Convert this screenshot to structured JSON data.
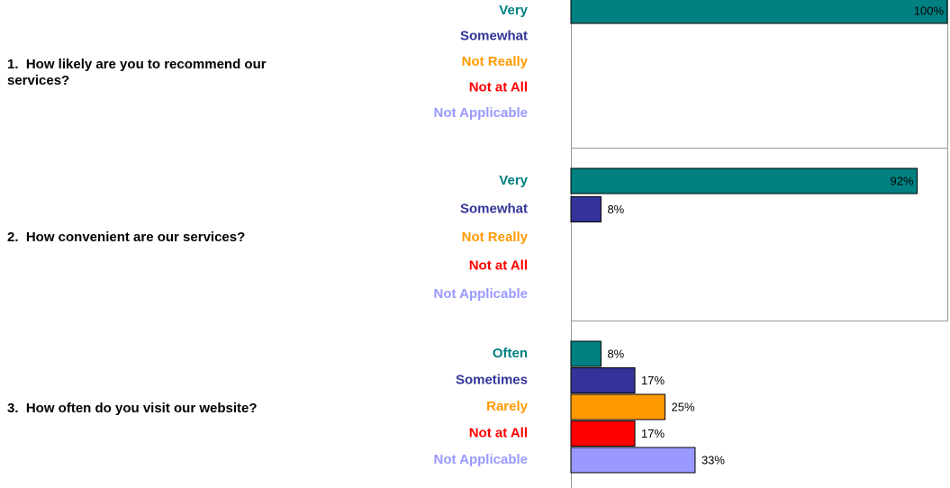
{
  "chart_data": [
    {
      "type": "bar",
      "title": "1.  How likely are you to recommend our services?",
      "categories": [
        "Very",
        "Somewhat",
        "Not Really",
        "Not at All",
        "Not Applicable"
      ],
      "values": [
        100,
        0,
        0,
        0,
        0
      ],
      "value_labels": [
        "100%",
        null,
        null,
        null,
        null
      ],
      "colors": [
        "#008080",
        "#333399",
        "#ff9900",
        "#ff0000",
        "#9999ff"
      ],
      "xlim": [
        0,
        100
      ]
    },
    {
      "type": "bar",
      "title": "2.  How convenient are our services?",
      "categories": [
        "Very",
        "Somewhat",
        "Not Really",
        "Not at All",
        "Not Applicable"
      ],
      "values": [
        92,
        8,
        0,
        0,
        0
      ],
      "value_labels": [
        "92%",
        "8%",
        null,
        null,
        null
      ],
      "colors": [
        "#008080",
        "#333399",
        "#ff9900",
        "#ff0000",
        "#9999ff"
      ],
      "xlim": [
        0,
        100
      ]
    },
    {
      "type": "bar",
      "title": "3.  How often do you visit our website?",
      "categories": [
        "Often",
        "Sometimes",
        "Rarely",
        "Not at All",
        "Not Applicable"
      ],
      "values": [
        8,
        17,
        25,
        17,
        33
      ],
      "value_labels": [
        "8%",
        "17%",
        "25%",
        "17%",
        "33%"
      ],
      "colors": [
        "#008080",
        "#333399",
        "#ff9900",
        "#ff0000",
        "#9999ff"
      ],
      "xlim": [
        0,
        100
      ]
    }
  ]
}
